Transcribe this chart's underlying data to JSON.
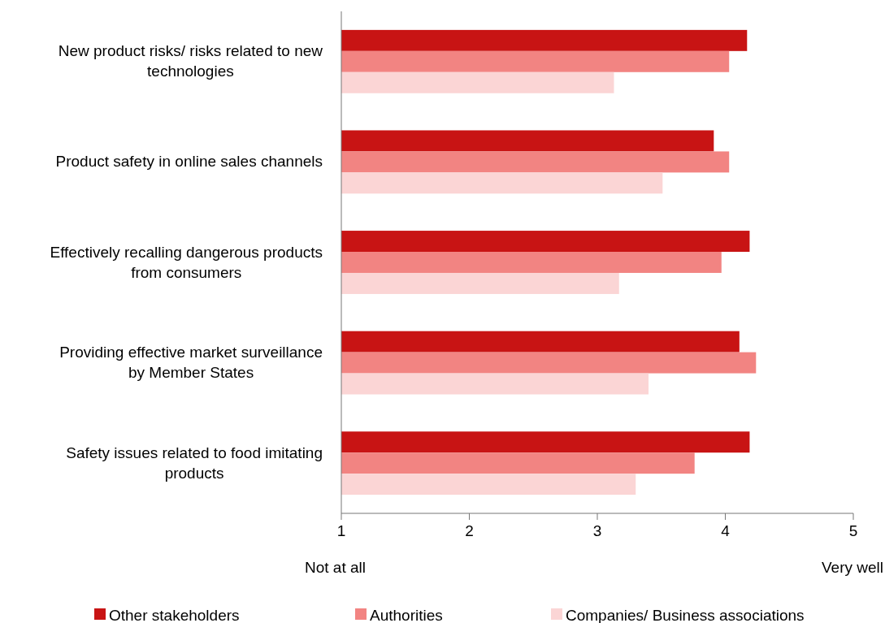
{
  "chart_data": {
    "type": "bar",
    "orientation": "horizontal",
    "categories": [
      "New product risks/ risks related to new technologies",
      "Product safety in online sales channels",
      "Effectively recalling dangerous products from consumers",
      "Providing effective market surveillance by Member States",
      "Safety issues related to food imitating products"
    ],
    "series": [
      {
        "name": "Other stakeholders",
        "color": "#c81414",
        "values": [
          4.17,
          3.91,
          4.19,
          4.11,
          4.19
        ]
      },
      {
        "name": "Authorities",
        "color": "#f28482",
        "values": [
          4.03,
          4.03,
          3.97,
          4.24,
          3.76
        ]
      },
      {
        "name": "Companies/ Business associations",
        "color": "#fbd5d5",
        "values": [
          3.13,
          3.51,
          3.17,
          3.4,
          3.3
        ]
      }
    ],
    "xlim": [
      1,
      5
    ],
    "xticks": [
      1,
      2,
      3,
      4,
      5
    ],
    "grid": false,
    "legend": "bottom",
    "annotations": [
      "Not at all",
      "Very well"
    ]
  }
}
